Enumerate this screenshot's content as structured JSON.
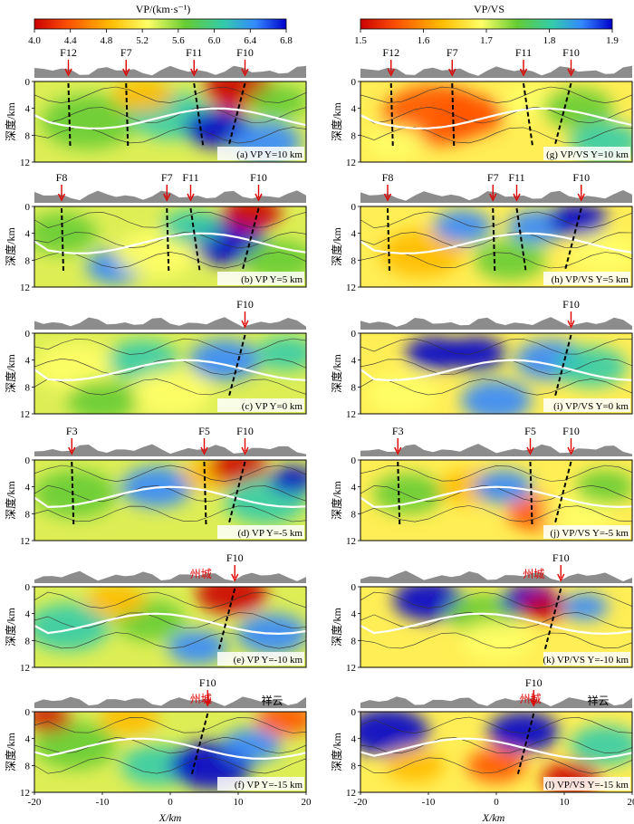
{
  "colorbars": [
    {
      "title": "VP/(km·s⁻¹)",
      "ticks": [
        "4.0",
        "4.4",
        "4.8",
        "5.2",
        "5.6",
        "6.0",
        "6.4",
        "6.8"
      ]
    },
    {
      "title": "VP/VS",
      "ticks": [
        "1.5",
        "1.6",
        "1.7",
        "1.8",
        "1.9"
      ]
    }
  ],
  "axes": {
    "ylabel": "深度/km",
    "xlabel": "X/km",
    "yticks": [
      "0",
      "4",
      "8",
      "12"
    ],
    "xticks": [
      "-20",
      "-10",
      "0",
      "10",
      "20"
    ]
  },
  "panels": [
    {
      "label": "(a) VP Y=10 km",
      "faults": [
        {
          "name": "F12",
          "x": -15
        },
        {
          "name": "F7",
          "x": -6.5
        },
        {
          "name": "F11",
          "x": 3.5
        },
        {
          "name": "F10",
          "x": 11
        }
      ],
      "towns": []
    },
    {
      "label": "(b) VP Y=5 km",
      "faults": [
        {
          "name": "F8",
          "x": -16
        },
        {
          "name": "F7",
          "x": -0.5
        },
        {
          "name": "F11",
          "x": 3
        },
        {
          "name": "F10",
          "x": 13
        }
      ],
      "towns": []
    },
    {
      "label": "(c) VP Y=0 km",
      "faults": [
        {
          "name": "F10",
          "x": 11
        }
      ],
      "towns": []
    },
    {
      "label": "(d) VP Y=-5 km",
      "faults": [
        {
          "name": "F3",
          "x": -14.5
        },
        {
          "name": "F5",
          "x": 5
        },
        {
          "name": "F10",
          "x": 11
        }
      ],
      "towns": []
    },
    {
      "label": "(e) VP Y=-10 km",
      "faults": [
        {
          "name": "F10",
          "x": 9.5
        }
      ],
      "towns": [
        {
          "name": "州城",
          "x": 4.5
        }
      ]
    },
    {
      "label": "(f) VP Y=-15 km",
      "faults": [
        {
          "name": "F10",
          "x": 5.5
        }
      ],
      "towns": [
        {
          "name": "州城",
          "x": 4.5
        },
        {
          "name": "祥云",
          "x": 15
        }
      ]
    },
    {
      "label": "(g) VP/VS Y=10 km",
      "faults": [
        {
          "name": "F12",
          "x": -15.5
        },
        {
          "name": "F7",
          "x": -6.5
        },
        {
          "name": "F11",
          "x": 4
        },
        {
          "name": "F10",
          "x": 11
        }
      ],
      "towns": []
    },
    {
      "label": "(h) VP/VS Y=5 km",
      "faults": [
        {
          "name": "F8",
          "x": -16
        },
        {
          "name": "F7",
          "x": -0.5
        },
        {
          "name": "F11",
          "x": 3
        },
        {
          "name": "F10",
          "x": 12.5
        }
      ],
      "towns": []
    },
    {
      "label": "(i) VP/VS Y=0 km",
      "faults": [
        {
          "name": "F10",
          "x": 11
        }
      ],
      "towns": []
    },
    {
      "label": "(j) VP/VS Y=-5 km",
      "faults": [
        {
          "name": "F3",
          "x": -14.5
        },
        {
          "name": "F5",
          "x": 5
        },
        {
          "name": "F10",
          "x": 11
        }
      ],
      "towns": []
    },
    {
      "label": "(k) VP/VS Y=-10 km",
      "faults": [
        {
          "name": "F10",
          "x": 9.5
        }
      ],
      "towns": [
        {
          "name": "州城",
          "x": 5.5
        }
      ]
    },
    {
      "label": "(l) VP/VS Y=-15 km",
      "faults": [
        {
          "name": "F10",
          "x": 5.5
        }
      ],
      "towns": [
        {
          "name": "州城",
          "x": 5
        },
        {
          "name": "祥云",
          "x": 15
        }
      ]
    }
  ],
  "chart_data": {
    "type": "heatmap",
    "x": {
      "min": -20,
      "max": 20
    },
    "y": {
      "min": 0,
      "max": 12,
      "reversed": true
    },
    "vp_range": [
      4.0,
      6.8
    ],
    "vpvs_range": [
      1.5,
      1.9
    ],
    "colors": [
      "#cc0000",
      "#ff6600",
      "#ffcc00",
      "#ffff99",
      "#66cc33",
      "#33cc99",
      "#3399ff",
      "#0000cc"
    ]
  }
}
